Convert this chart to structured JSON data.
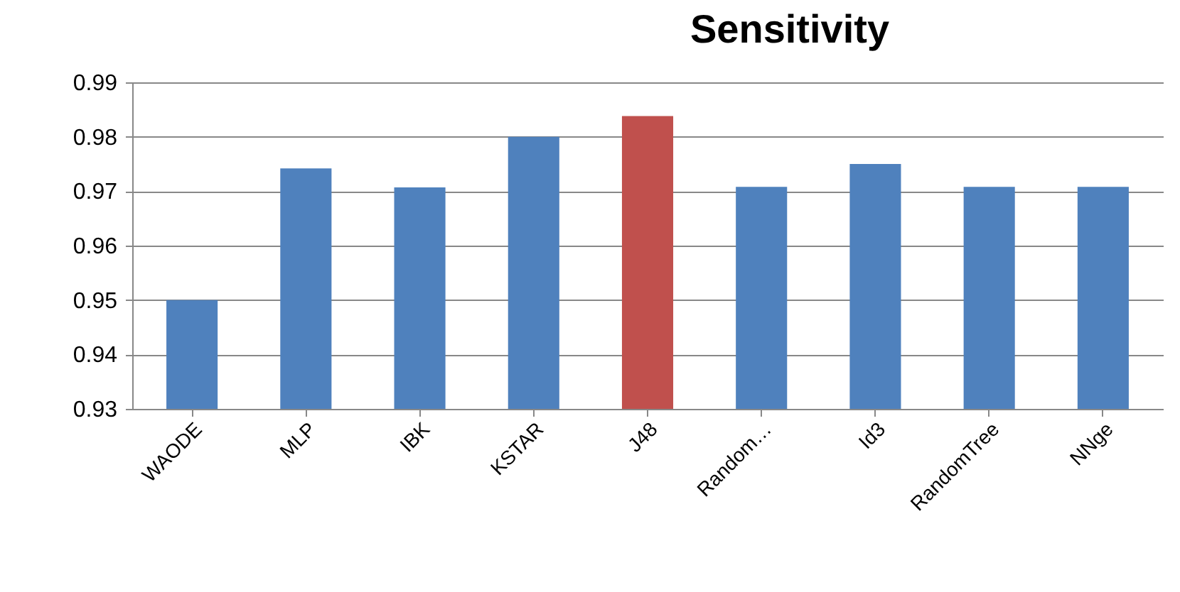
{
  "chart_data": {
    "type": "bar",
    "title": "Sensitivity",
    "categories": [
      "WAODE",
      "MLP",
      "IBK",
      "KSTAR",
      "J48",
      "Random…",
      "Id3",
      "RandomTree",
      "NNge"
    ],
    "values": [
      0.95,
      0.9742,
      0.9707,
      0.98,
      0.9838,
      0.9708,
      0.975,
      0.9708,
      0.9708
    ],
    "colors": [
      "#4f81bd",
      "#4f81bd",
      "#4f81bd",
      "#4f81bd",
      "#c0504d",
      "#4f81bd",
      "#4f81bd",
      "#4f81bd",
      "#4f81bd"
    ],
    "ylim": [
      0.93,
      0.99
    ],
    "yticks": [
      0.93,
      0.94,
      0.95,
      0.96,
      0.97,
      0.98,
      0.99
    ],
    "grid": "y"
  }
}
